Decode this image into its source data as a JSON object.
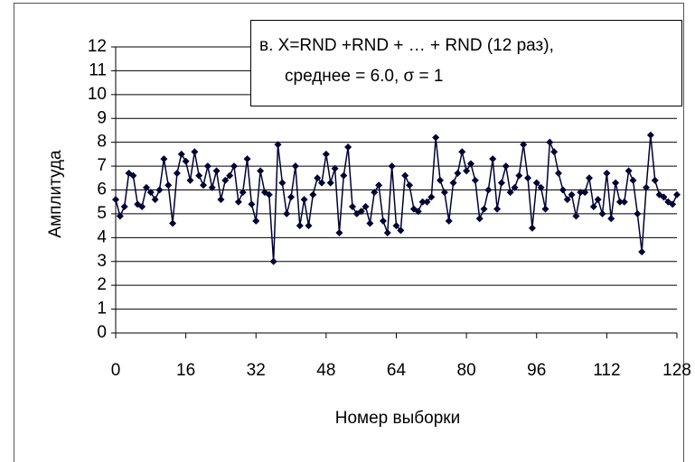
{
  "chart_data": {
    "type": "line",
    "annotation": [
      "в. X=RND +RND + … + RND (12 раз),",
      "среднее = 6.0, σ = 1"
    ],
    "xlabel": "Номер выборки",
    "ylabel": "Амплитуда",
    "x": [
      0,
      1,
      2,
      3,
      4,
      5,
      6,
      7,
      8,
      9,
      10,
      11,
      12,
      13,
      14,
      15,
      16,
      17,
      18,
      19,
      20,
      21,
      22,
      23,
      24,
      25,
      26,
      27,
      28,
      29,
      30,
      31,
      32,
      33,
      34,
      35,
      36,
      37,
      38,
      39,
      40,
      41,
      42,
      43,
      44,
      45,
      46,
      47,
      48,
      49,
      50,
      51,
      52,
      53,
      54,
      55,
      56,
      57,
      58,
      59,
      60,
      61,
      62,
      63,
      64,
      65,
      66,
      67,
      68,
      69,
      70,
      71,
      72,
      73,
      74,
      75,
      76,
      77,
      78,
      79,
      80,
      81,
      82,
      83,
      84,
      85,
      86,
      87,
      88,
      89,
      90,
      91,
      92,
      93,
      94,
      95,
      96,
      97,
      98,
      99,
      100,
      101,
      102,
      103,
      104,
      105,
      106,
      107,
      108,
      109,
      110,
      111,
      112,
      113,
      114,
      115,
      116,
      117,
      118,
      119,
      120,
      121,
      122,
      123,
      124,
      125,
      126,
      127,
      128
    ],
    "values": [
      5.6,
      4.9,
      5.3,
      6.7,
      6.6,
      5.4,
      5.3,
      6.1,
      5.9,
      5.6,
      6.0,
      7.3,
      6.2,
      4.6,
      6.7,
      7.5,
      7.2,
      6.4,
      7.6,
      6.6,
      6.2,
      7.0,
      6.1,
      6.8,
      5.6,
      6.4,
      6.6,
      7.0,
      5.5,
      5.9,
      7.3,
      5.4,
      4.7,
      6.8,
      5.9,
      5.8,
      3.0,
      7.9,
      6.3,
      5.0,
      5.7,
      7.0,
      4.5,
      5.6,
      4.5,
      5.8,
      6.5,
      6.3,
      7.5,
      6.3,
      6.9,
      4.2,
      6.6,
      7.8,
      5.3,
      5.0,
      5.1,
      5.3,
      4.6,
      5.9,
      6.2,
      4.7,
      4.2,
      7.0,
      4.5,
      4.3,
      6.6,
      6.2,
      5.2,
      5.1,
      5.5,
      5.5,
      5.7,
      8.2,
      6.4,
      5.9,
      4.7,
      6.3,
      6.7,
      7.6,
      6.8,
      7.1,
      6.4,
      4.8,
      5.2,
      6.0,
      7.3,
      5.2,
      6.3,
      7.0,
      5.9,
      6.1,
      6.6,
      7.9,
      6.5,
      4.4,
      6.3,
      6.1,
      5.2,
      8.0,
      7.6,
      6.7,
      6.0,
      5.6,
      5.8,
      4.9,
      5.9,
      5.9,
      6.5,
      5.3,
      5.6,
      5.0,
      6.7,
      4.8,
      6.3,
      5.5,
      5.5,
      6.8,
      6.4,
      5.0,
      3.4,
      6.1,
      8.3,
      6.4,
      5.8,
      5.7,
      5.5,
      5.4,
      5.8
    ],
    "color": "#000033",
    "xlim": [
      0,
      128
    ],
    "xticks": [
      0,
      16,
      32,
      48,
      64,
      80,
      96,
      112,
      128
    ],
    "ylim": [
      0,
      12
    ],
    "yticks": [
      0,
      1,
      2,
      3,
      4,
      5,
      6,
      7,
      8,
      9,
      10,
      11,
      12
    ],
    "grid": true
  }
}
